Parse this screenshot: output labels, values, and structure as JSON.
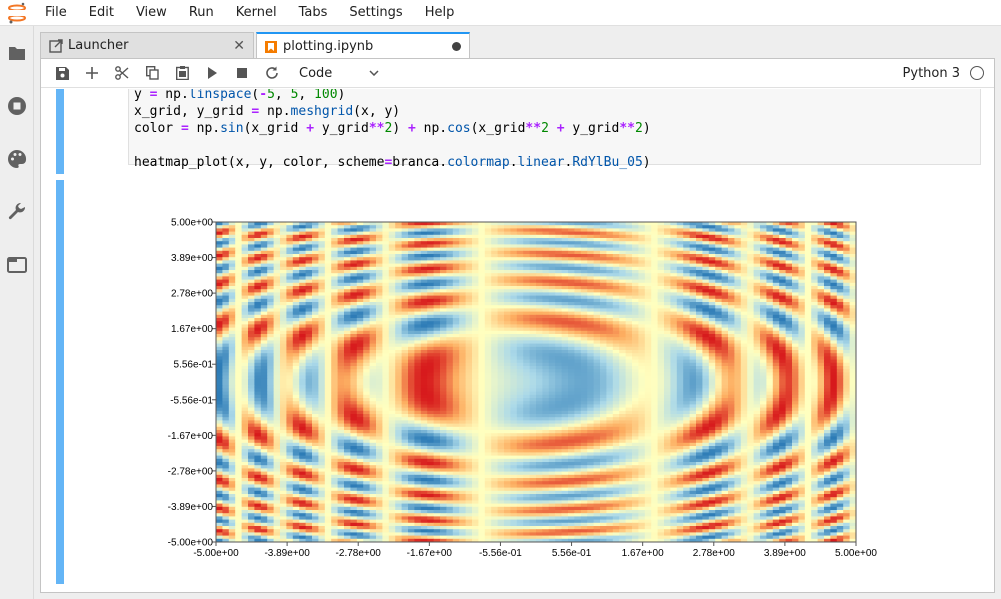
{
  "menubar": {
    "items": [
      "File",
      "Edit",
      "View",
      "Run",
      "Kernel",
      "Tabs",
      "Settings",
      "Help"
    ]
  },
  "sidebar": {
    "icons": [
      "folder-icon",
      "stop-circle-icon",
      "palette-icon",
      "wrench-icon",
      "tab-window-icon"
    ]
  },
  "tabs": [
    {
      "label": "Launcher",
      "icon": "launcher-icon",
      "active": false
    },
    {
      "label": "plotting.ipynb",
      "icon": "notebook-icon",
      "active": true
    }
  ],
  "toolbar": {
    "cell_type": "Code",
    "kernel": "Python 3"
  },
  "code": {
    "lines": [
      "y = np.linspace(-5, 5, 100)",
      "x_grid, y_grid = np.meshgrid(x, y)",
      "color = np.sin(x_grid + y_grid**2) + np.cos(x_grid**2 + y_grid**2)",
      "",
      "heatmap_plot(x, y, color, scheme=branca.colormap.linear.RdYlBu_05)"
    ]
  },
  "colors": {
    "accent": "#2196f3",
    "cell_bar": "#64b5f6",
    "colormap": [
      "#d7191c",
      "#fdae61",
      "#ffffbf",
      "#abd9e9",
      "#2c7bb6"
    ]
  },
  "chart_data": {
    "type": "heatmap",
    "function": "sin(x + y^2) + cos(x^2 + y^2)",
    "grid_size": 100,
    "xlim": [
      -5,
      5
    ],
    "ylim": [
      -5,
      5
    ],
    "x_ticks": [
      "-5.00e+00",
      "-3.89e+00",
      "-2.78e+00",
      "-1.67e+00",
      "-5.56e-01",
      "5.56e-01",
      "1.67e+00",
      "2.78e+00",
      "3.89e+00",
      "5.00e+00"
    ],
    "y_ticks": [
      "5.00e+00",
      "3.89e+00",
      "2.78e+00",
      "1.67e+00",
      "5.56e-01",
      "-5.56e-01",
      "-1.67e+00",
      "-2.78e+00",
      "-3.89e+00",
      "-5.00e+00"
    ],
    "colormap": "RdYlBu_05"
  }
}
